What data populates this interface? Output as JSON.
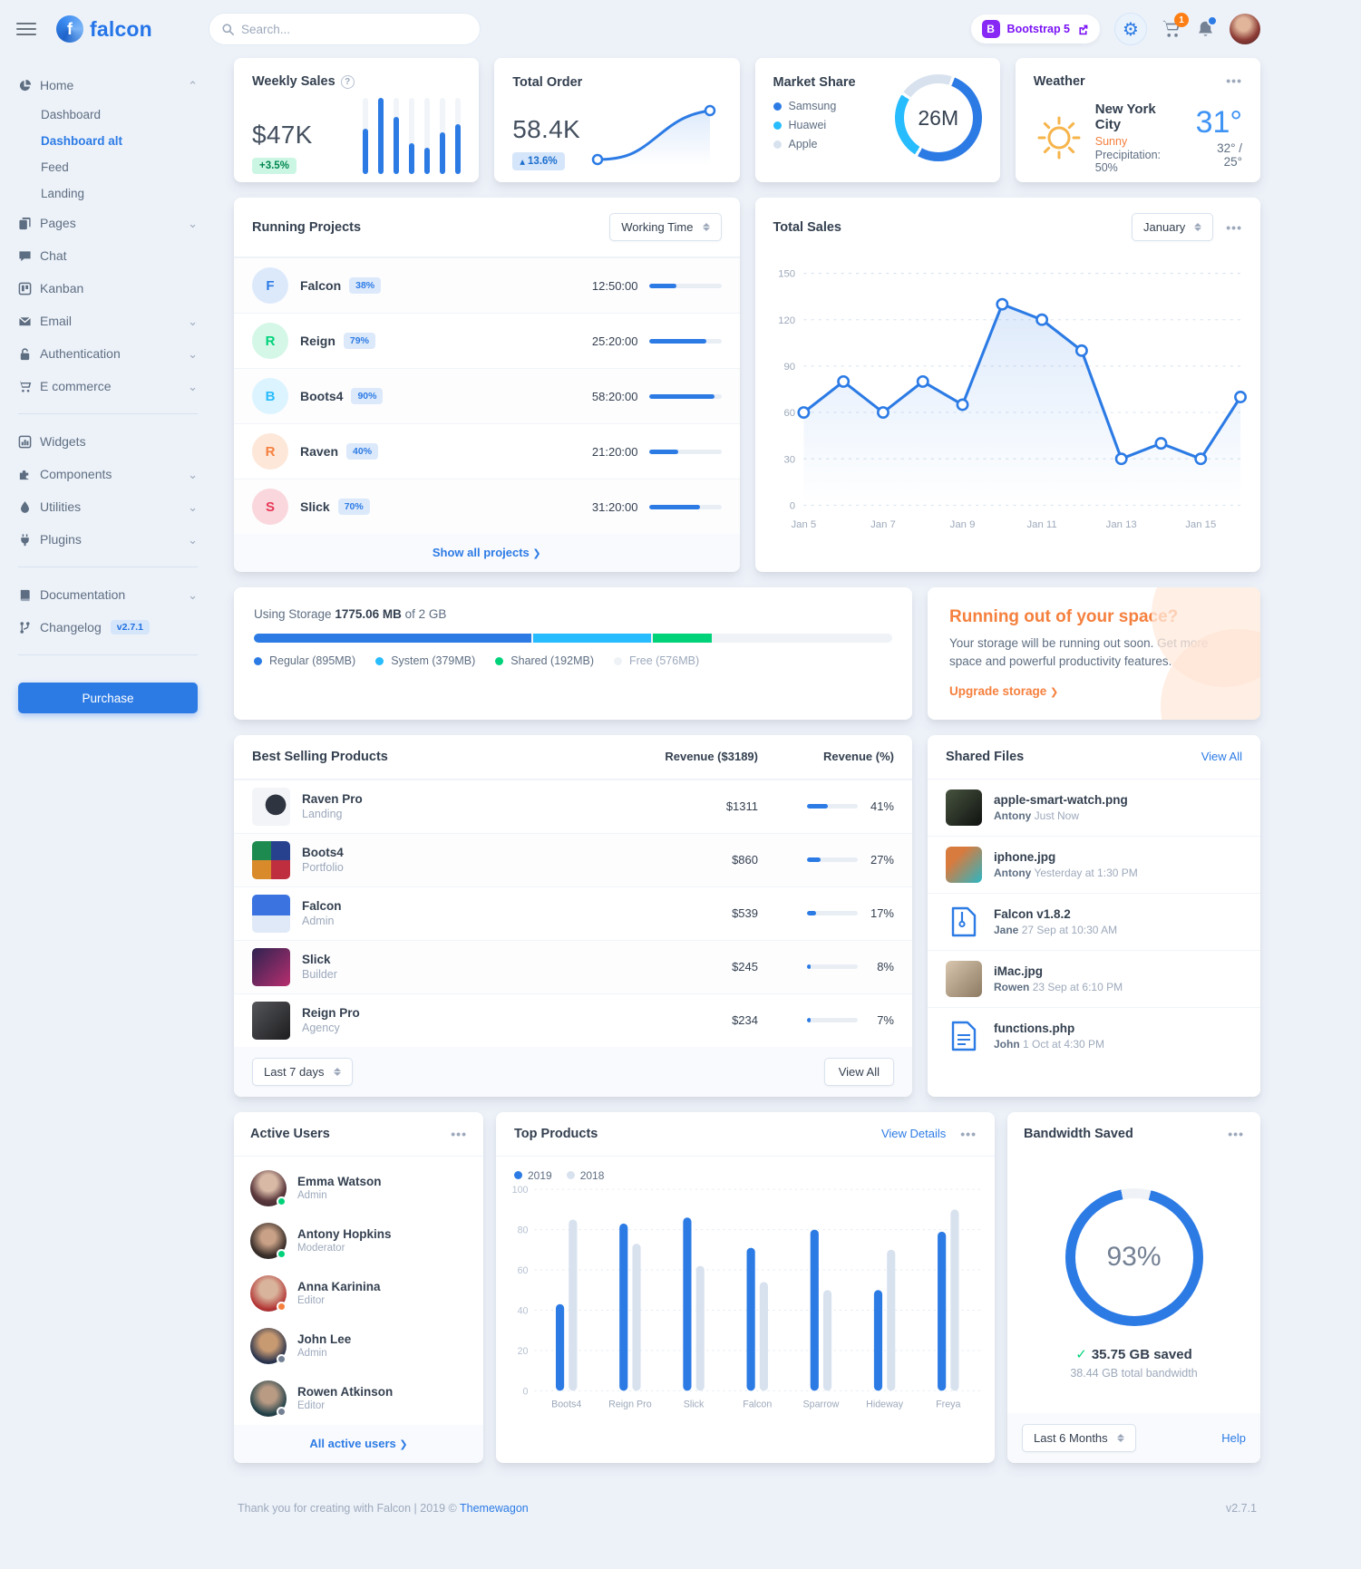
{
  "colors": {
    "primary": "#2c7be5",
    "success": "#00d27a",
    "info": "#27bcfd",
    "warning": "#f5803e",
    "danger": "#e63757",
    "muted": "#9da9bb"
  },
  "header": {
    "logo_initial": "f",
    "logo_text": "falcon",
    "search_placeholder": "Search...",
    "bootstrap_initial": "B",
    "bootstrap_badge": "Bootstrap 5",
    "cart_count": "1"
  },
  "sidebar": {
    "groups": [
      {
        "items": [
          {
            "label": "Home",
            "icon": "chart-pie-icon",
            "caret": "up"
          },
          {
            "label": "Pages",
            "icon": "copy-icon",
            "caret": "down"
          },
          {
            "label": "Chat",
            "icon": "comments-icon"
          },
          {
            "label": "Kanban",
            "icon": "kanban-icon"
          },
          {
            "label": "Email",
            "icon": "envelope-icon",
            "caret": "down"
          },
          {
            "label": "Authentication",
            "icon": "lock-icon",
            "caret": "down"
          },
          {
            "label": "E commerce",
            "icon": "cart-icon",
            "caret": "down"
          }
        ]
      },
      {
        "items": [
          {
            "label": "Widgets",
            "icon": "chart-bar-icon"
          },
          {
            "label": "Components",
            "icon": "puzzle-icon",
            "caret": "down"
          },
          {
            "label": "Utilities",
            "icon": "drop-icon",
            "caret": "down"
          },
          {
            "label": "Plugins",
            "icon": "plug-icon",
            "caret": "down"
          }
        ]
      },
      {
        "items": [
          {
            "label": "Documentation",
            "icon": "book-icon",
            "caret": "down"
          },
          {
            "label": "Changelog",
            "icon": "branch-icon",
            "badge": "v2.7.1"
          }
        ]
      }
    ],
    "home_children": [
      {
        "label": "Dashboard"
      },
      {
        "label": "Dashboard alt",
        "active": true
      },
      {
        "label": "Feed"
      },
      {
        "label": "Landing"
      }
    ],
    "purchase_label": "Purchase"
  },
  "stats": {
    "weekly_sales": {
      "title": "Weekly Sales",
      "value": "$47K",
      "badge": "+3.5%"
    },
    "total_order": {
      "title": "Total Order",
      "value": "58.4K",
      "badge": "13.6%"
    },
    "market_share": {
      "title": "Market Share",
      "center": "26M",
      "legend": [
        {
          "label": "Samsung",
          "color": "#2c7be5"
        },
        {
          "label": "Huawei",
          "color": "#27bcfd"
        },
        {
          "label": "Apple",
          "color": "#d8e2ef"
        }
      ]
    },
    "weather": {
      "title": "Weather",
      "city": "New York City",
      "condition": "Sunny",
      "precipitation": "Precipitation: 50%",
      "temp": "31°",
      "range": "32° / 25°"
    }
  },
  "running_projects": {
    "title": "Running Projects",
    "select": "Working Time",
    "projects": [
      {
        "initial": "F",
        "name": "Falcon",
        "percent": "38%",
        "time": "12:50:00",
        "progress": 38,
        "color": "#2c7be5",
        "bg": "#dce9fb"
      },
      {
        "initial": "R",
        "name": "Reign",
        "percent": "79%",
        "time": "25:20:00",
        "progress": 79,
        "color": "#00d27a",
        "bg": "#d4f7e7"
      },
      {
        "initial": "B",
        "name": "Boots4",
        "percent": "90%",
        "time": "58:20:00",
        "progress": 90,
        "color": "#27bcfd",
        "bg": "#dcf4ff"
      },
      {
        "initial": "R",
        "name": "Raven",
        "percent": "40%",
        "time": "21:20:00",
        "progress": 40,
        "color": "#f5803e",
        "bg": "#fde7d9"
      },
      {
        "initial": "S",
        "name": "Slick",
        "percent": "70%",
        "time": "31:20:00",
        "progress": 70,
        "color": "#e63757",
        "bg": "#fad7dd"
      }
    ],
    "footer_link": "Show all projects"
  },
  "total_sales": {
    "title": "Total Sales",
    "select": "January"
  },
  "storage": {
    "label_prefix": "Using Storage",
    "used": "1775.06 MB",
    "suffix": "of 2 GB",
    "segments": [
      {
        "label": "Regular (895MB)",
        "percent": 43.8,
        "color": "#2c7be5"
      },
      {
        "label": "System (379MB)",
        "percent": 18.6,
        "color": "#27bcfd"
      },
      {
        "label": "Shared (192MB)",
        "percent": 9.4,
        "color": "#00d27a"
      },
      {
        "label": "Free (576MB)",
        "percent": 28.2,
        "color": "#eff2f6"
      }
    ]
  },
  "space_card": {
    "title": "Running out of your space?",
    "body": "Your storage will be running out soon. Get more space and powerful productivity features.",
    "link": "Upgrade storage"
  },
  "best_selling": {
    "title": "Best Selling Products",
    "col_revenue": "Revenue ($3189)",
    "col_percent": "Revenue (%)",
    "products": [
      {
        "name": "Raven Pro",
        "category": "Landing",
        "revenue": "$1311",
        "percent": "41%",
        "progress": 41
      },
      {
        "name": "Boots4",
        "category": "Portfolio",
        "revenue": "$860",
        "percent": "27%",
        "progress": 27
      },
      {
        "name": "Falcon",
        "category": "Admin",
        "revenue": "$539",
        "percent": "17%",
        "progress": 17
      },
      {
        "name": "Slick",
        "category": "Builder",
        "revenue": "$245",
        "percent": "8%",
        "progress": 8
      },
      {
        "name": "Reign Pro",
        "category": "Agency",
        "revenue": "$234",
        "percent": "7%",
        "progress": 7
      }
    ],
    "select": "Last 7 days",
    "view_all": "View All"
  },
  "shared_files": {
    "title": "Shared Files",
    "view_all": "View All",
    "files": [
      {
        "name": "apple-smart-watch.png",
        "author": "Antony",
        "time": "Just Now"
      },
      {
        "name": "iphone.jpg",
        "author": "Antony",
        "time": "Yesterday at 1:30 PM"
      },
      {
        "name": "Falcon v1.8.2",
        "author": "Jane",
        "time": "27 Sep at 10:30 AM"
      },
      {
        "name": "iMac.jpg",
        "author": "Rowen",
        "time": "23 Sep at 6:10 PM"
      },
      {
        "name": "functions.php",
        "author": "John",
        "time": "1 Oct at 4:30 PM"
      }
    ]
  },
  "active_users": {
    "title": "Active Users",
    "users": [
      {
        "name": "Emma Watson",
        "role": "Admin",
        "status": "#00d27a"
      },
      {
        "name": "Antony Hopkins",
        "role": "Moderator",
        "status": "#00d27a"
      },
      {
        "name": "Anna Karinina",
        "role": "Editor",
        "status": "#f5803e"
      },
      {
        "name": "John Lee",
        "role": "Admin",
        "status": "#748194"
      },
      {
        "name": "Rowen Atkinson",
        "role": "Editor",
        "status": "#748194"
      }
    ],
    "footer_link": "All active users"
  },
  "top_products": {
    "title": "Top Products",
    "view_details": "View Details"
  },
  "bandwidth": {
    "title": "Bandwidth Saved",
    "percent": "93%",
    "saved": "35.75 GB saved",
    "total": "38.44 GB total bandwidth",
    "select": "Last 6 Months",
    "help": "Help"
  },
  "footer": {
    "text_before": "Thank you for creating with Falcon | 2019 © ",
    "link": "Themewagon",
    "version": "v2.7.1"
  },
  "chart_data": [
    {
      "id": "weekly-sales",
      "type": "bar",
      "values": [
        120,
        200,
        150,
        80,
        70,
        110,
        130
      ],
      "ymax": 200,
      "color": "#2c7be5",
      "title": "Weekly Sales"
    },
    {
      "id": "total-order",
      "type": "line",
      "values": [
        20,
        22,
        27,
        38,
        50,
        57,
        58.4
      ],
      "title": "Total Order trend"
    },
    {
      "id": "market-share",
      "type": "pie",
      "labels": [
        "Samsung",
        "Huawei",
        "Apple"
      ],
      "values": [
        53,
        26,
        21
      ],
      "colors": [
        "#2c7be5",
        "#27bcfd",
        "#d8e2ef"
      ],
      "center": "26M"
    },
    {
      "id": "total-sales",
      "type": "line",
      "title": "Total Sales",
      "x": [
        "Jan 5",
        "Jan 7",
        "Jan 9",
        "Jan 11",
        "Jan 13",
        "Jan 15"
      ],
      "values": [
        60,
        80,
        60,
        80,
        65,
        130,
        120,
        100,
        30,
        40,
        30,
        70
      ],
      "ylim": [
        0,
        150
      ],
      "yticks": [
        0,
        30,
        60,
        90,
        120,
        150
      ],
      "color": "#2c7be5",
      "grid": true
    },
    {
      "id": "top-products",
      "type": "bar",
      "title": "Top Products",
      "categories": [
        "Boots4",
        "Reign Pro",
        "Slick",
        "Falcon",
        "Sparrow",
        "Hideway",
        "Freya"
      ],
      "series": [
        {
          "name": "2019",
          "color": "#2c7be5",
          "values": [
            43,
            83,
            86,
            71,
            80,
            50,
            79
          ]
        },
        {
          "name": "2018",
          "color": "#d8e2ef",
          "values": [
            85,
            73,
            62,
            54,
            50,
            70,
            90
          ]
        }
      ],
      "ylim": [
        0,
        100
      ],
      "yticks": [
        0,
        20,
        40,
        60,
        80,
        100
      ],
      "grid": true,
      "legend_position": "top-left"
    },
    {
      "id": "bandwidth-gauge",
      "type": "gauge",
      "value": 93,
      "color": "#2c7be5",
      "track": "#eff2f6"
    }
  ]
}
